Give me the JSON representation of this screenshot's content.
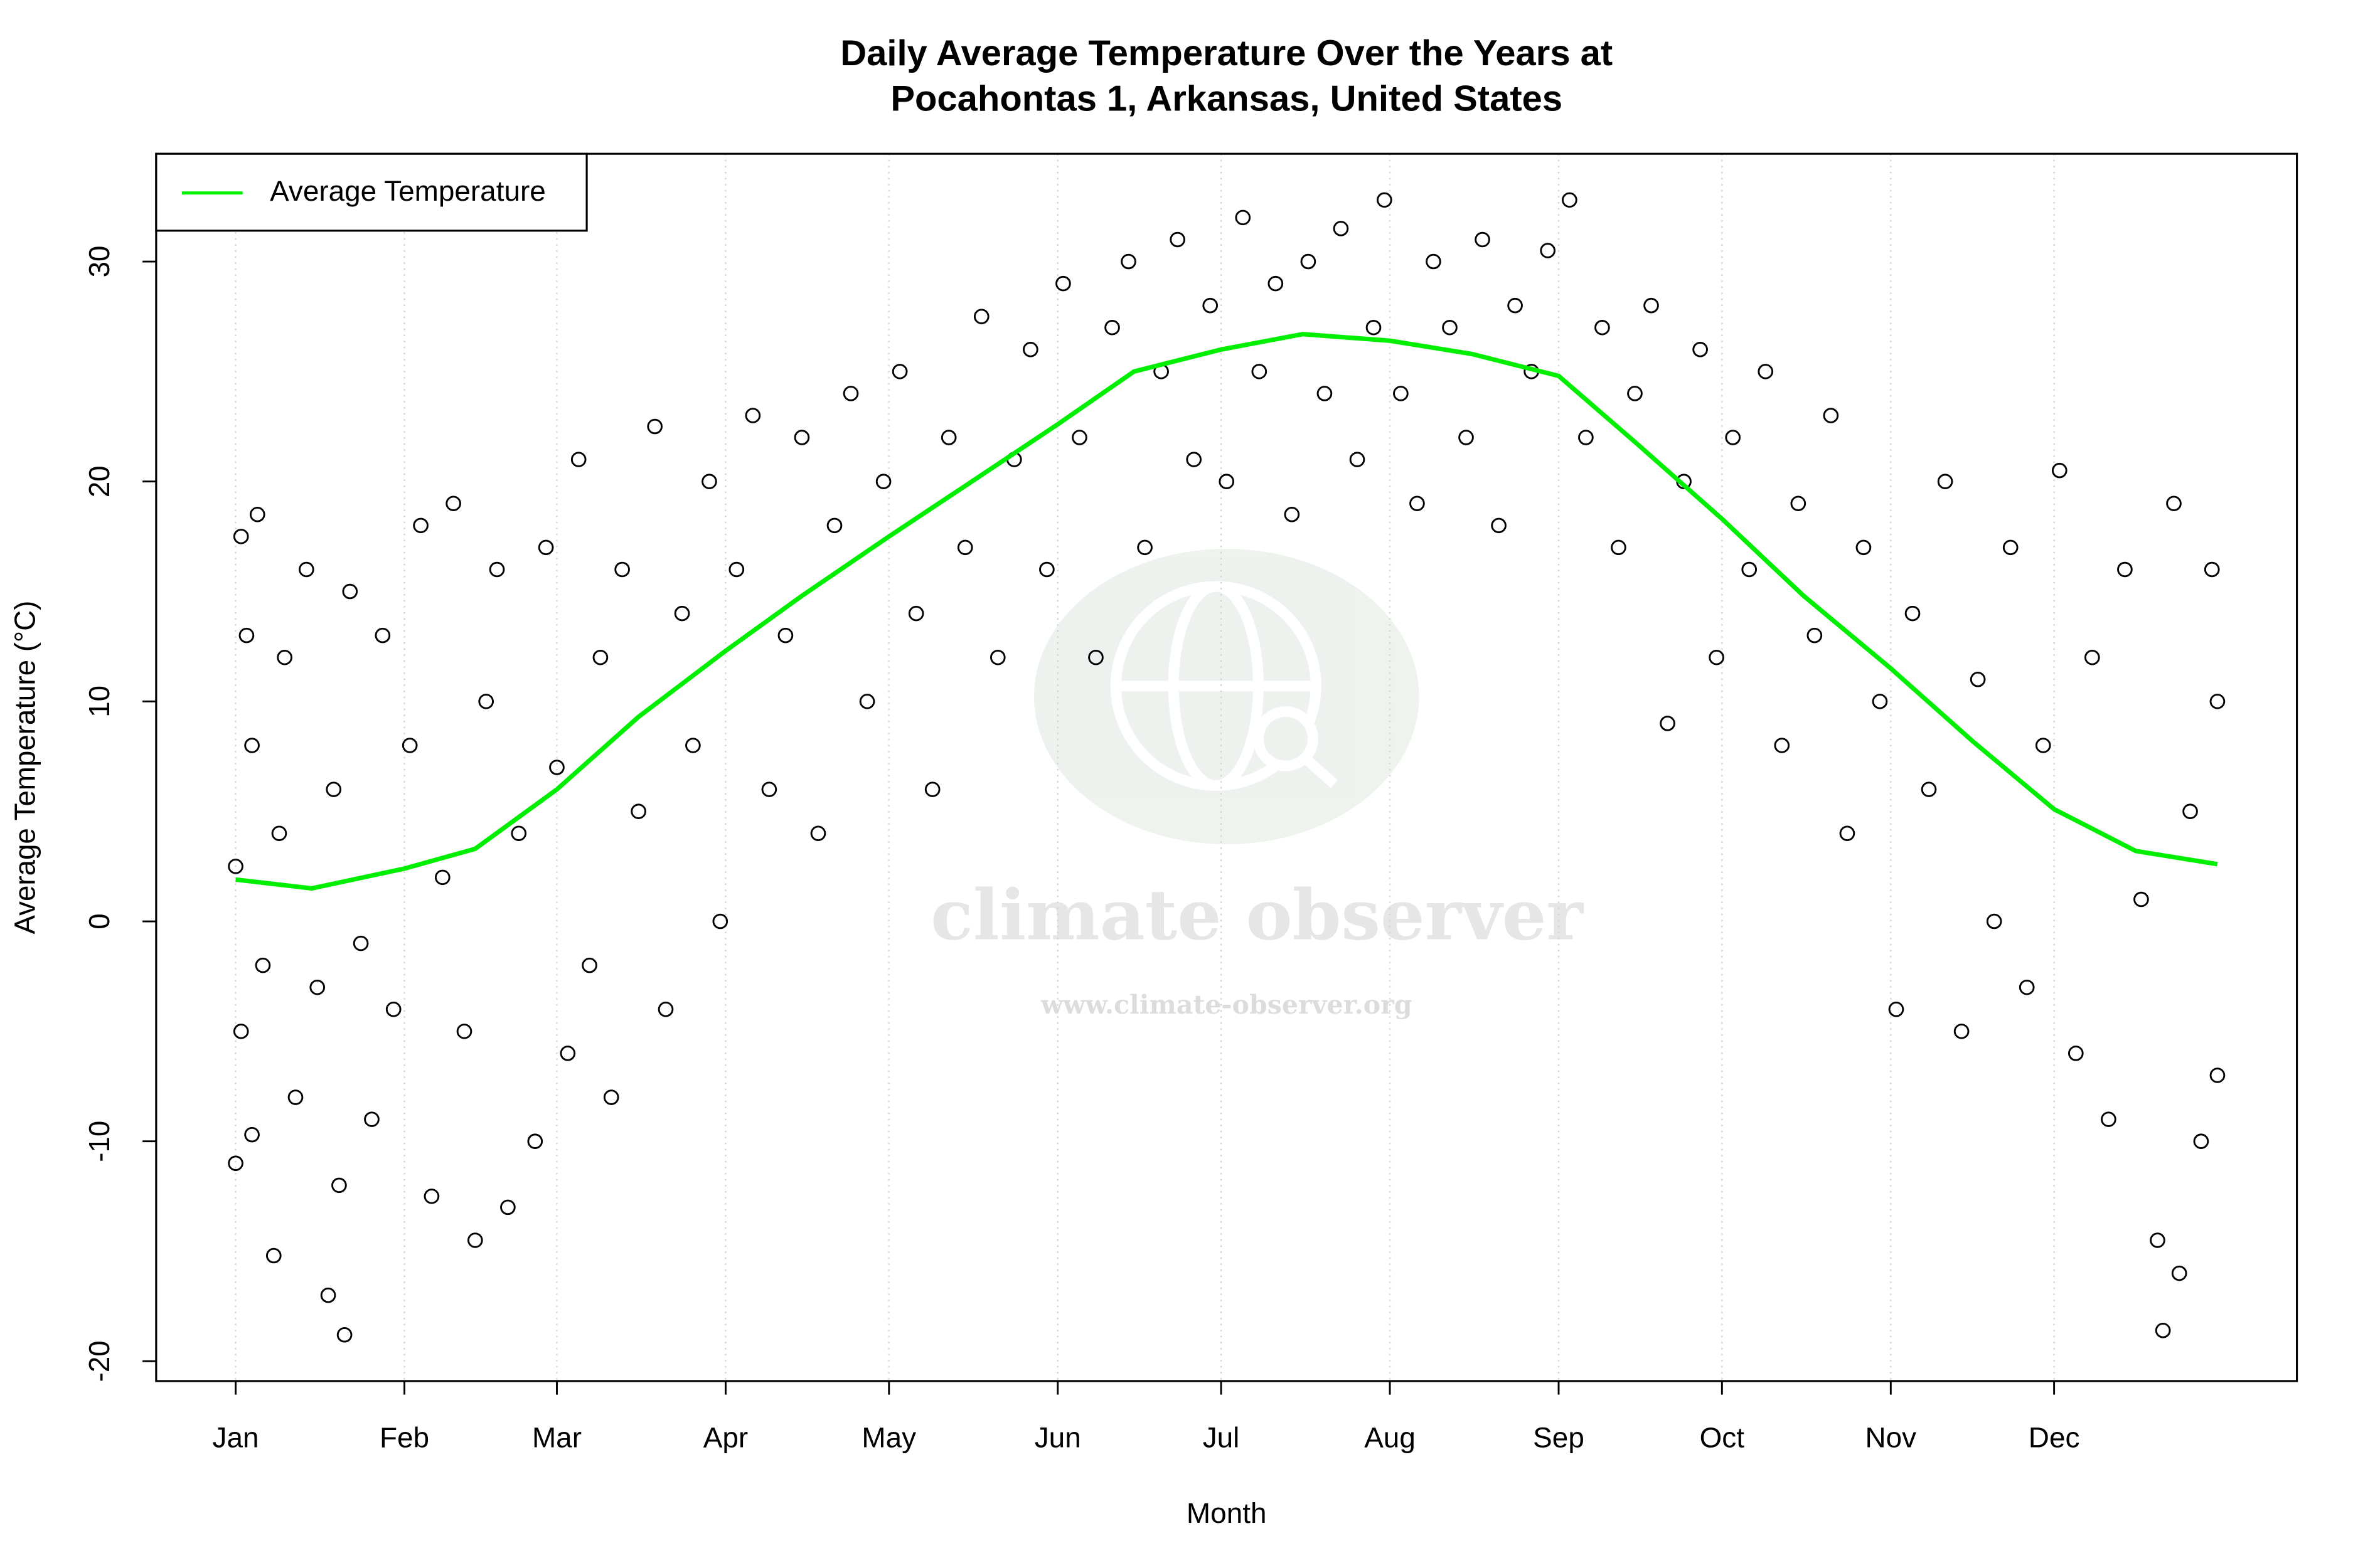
{
  "chart_data": {
    "type": "scatter",
    "title": [
      "Daily Average Temperature Over the Years at",
      "Pocahontas 1, Arkansas, United States"
    ],
    "x_label": "Month",
    "y_label": "Average Temperature (°C)",
    "xlim": [
      -13.6,
      379.6
    ],
    "ylim": [
      -20.9,
      34.9
    ],
    "xticks": [
      {
        "value": 1,
        "label": "Jan"
      },
      {
        "value": 32,
        "label": "Feb"
      },
      {
        "value": 60,
        "label": "Mar"
      },
      {
        "value": 91,
        "label": "Apr"
      },
      {
        "value": 121,
        "label": "May"
      },
      {
        "value": 152,
        "label": "Jun"
      },
      {
        "value": 182,
        "label": "Jul"
      },
      {
        "value": 213,
        "label": "Aug"
      },
      {
        "value": 244,
        "label": "Sep"
      },
      {
        "value": 274,
        "label": "Oct"
      },
      {
        "value": 305,
        "label": "Nov"
      },
      {
        "value": 335,
        "label": "Dec"
      }
    ],
    "yticks": [
      -20,
      -10,
      0,
      10,
      20,
      30
    ],
    "grid": "x",
    "legend_position": "top-left",
    "points": {
      "color": "#000000",
      "x": [
        1,
        1,
        2,
        2,
        3,
        4,
        4,
        5,
        6,
        8,
        9,
        10,
        12,
        14,
        16,
        18,
        19,
        20,
        21,
        22,
        24,
        26,
        28,
        30,
        33,
        35,
        37,
        39,
        41,
        43,
        45,
        47,
        49,
        51,
        53,
        56,
        58,
        60,
        62,
        64,
        66,
        68,
        70,
        72,
        75,
        78,
        80,
        83,
        85,
        88,
        90,
        93,
        96,
        99,
        102,
        105,
        108,
        111,
        114,
        117,
        120,
        123,
        126,
        129,
        132,
        135,
        138,
        141,
        144,
        147,
        150,
        153,
        156,
        159,
        162,
        165,
        168,
        171,
        174,
        177,
        180,
        183,
        186,
        189,
        192,
        195,
        198,
        201,
        204,
        207,
        210,
        212,
        215,
        218,
        221,
        224,
        227,
        230,
        233,
        236,
        239,
        242,
        246,
        249,
        252,
        255,
        258,
        261,
        264,
        267,
        270,
        273,
        276,
        279,
        282,
        285,
        288,
        291,
        294,
        297,
        300,
        303,
        306,
        309,
        312,
        315,
        318,
        321,
        324,
        327,
        330,
        333,
        336,
        339,
        342,
        345,
        348,
        351,
        354,
        355,
        357,
        358,
        360,
        362,
        364,
        365,
        365
      ],
      "values": [
        2.5,
        -11,
        17.5,
        -5,
        13,
        -9.7,
        8,
        18.5,
        -2,
        -15.2,
        4,
        12,
        -8,
        16,
        -3,
        -17,
        6,
        -12,
        -18.8,
        15,
        -1,
        -9,
        13,
        -4,
        8,
        18,
        -12.5,
        2,
        19,
        -5,
        -14.5,
        10,
        16,
        -13,
        4,
        -10,
        17,
        7,
        -6,
        21,
        -2,
        12,
        -8,
        16,
        5,
        22.5,
        -4,
        14,
        8,
        20,
        0,
        16,
        23,
        6,
        13,
        22,
        4,
        18,
        24,
        10,
        20,
        25,
        14,
        6,
        22,
        17,
        27.5,
        12,
        21,
        26,
        16,
        29,
        22,
        12,
        27,
        30,
        17,
        25,
        31,
        21,
        28,
        20,
        32,
        25,
        29,
        18.5,
        30,
        24,
        31.5,
        21,
        27,
        32.8,
        24,
        19,
        30,
        27,
        22,
        31,
        18,
        28,
        25,
        30.5,
        32.8,
        22,
        27,
        17,
        24,
        28,
        9,
        20,
        26,
        12,
        22,
        16,
        25,
        8,
        19,
        13,
        23,
        4,
        17,
        10,
        -4,
        14,
        6,
        20,
        -5,
        11,
        0,
        17,
        -3,
        8,
        20.5,
        -6,
        12,
        -9,
        16,
        1,
        -14.5,
        -18.6,
        19,
        -16,
        5,
        -10,
        16,
        -7,
        10
      ]
    },
    "series": [
      {
        "name": "Average Temperature",
        "color": "#00ee00",
        "x": [
          1,
          15,
          32,
          45,
          60,
          75,
          91,
          105,
          121,
          135,
          152,
          166,
          182,
          197,
          213,
          228,
          244,
          258,
          274,
          289,
          305,
          320,
          335,
          350,
          365
        ],
        "values": [
          1.9,
          1.5,
          2.4,
          3.3,
          6.0,
          9.3,
          12.3,
          14.8,
          17.5,
          19.8,
          22.6,
          25.0,
          26.0,
          26.7,
          26.4,
          25.8,
          24.8,
          21.8,
          18.3,
          14.8,
          11.5,
          8.2,
          5.1,
          3.2,
          2.6
        ]
      }
    ],
    "watermark": {
      "name": "climate observer",
      "url": "www.climate-observer.org"
    }
  }
}
